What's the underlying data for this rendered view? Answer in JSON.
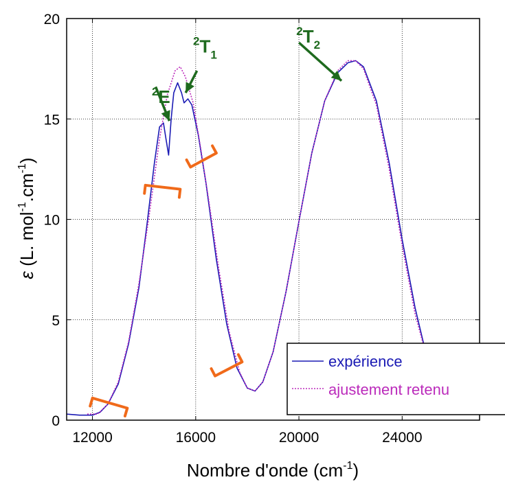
{
  "chart_data": {
    "type": "line",
    "title": "",
    "xlabel": {
      "main": "Nombre d'onde (cm",
      "sup": "-1",
      "close": ")"
    },
    "ylabel": {
      "eps": "ε",
      "open": " (L. mol",
      "sup1": "-1",
      "mid": ".cm",
      "sup2": "-1",
      "close": ")"
    },
    "xlim": [
      11000,
      27000
    ],
    "ylim": [
      0,
      20
    ],
    "xticks": [
      12000,
      16000,
      20000,
      24000
    ],
    "yticks": [
      0,
      5,
      10,
      15,
      20
    ],
    "grid": true,
    "legend_position": "bottom-right",
    "series": [
      {
        "name": "expérience",
        "color": "#1a1ab4",
        "style": "solid",
        "points": [
          [
            11000,
            0.3
          ],
          [
            11500,
            0.25
          ],
          [
            12000,
            0.25
          ],
          [
            12300,
            0.4
          ],
          [
            12600,
            0.8
          ],
          [
            13000,
            1.8
          ],
          [
            13400,
            3.8
          ],
          [
            13800,
            6.6
          ],
          [
            14100,
            9.6
          ],
          [
            14400,
            12.8
          ],
          [
            14600,
            14.6
          ],
          [
            14750,
            14.8
          ],
          [
            14850,
            14.0
          ],
          [
            14950,
            13.2
          ],
          [
            15050,
            15.0
          ],
          [
            15150,
            16.3
          ],
          [
            15300,
            16.8
          ],
          [
            15450,
            16.3
          ],
          [
            15550,
            15.8
          ],
          [
            15700,
            16.0
          ],
          [
            15850,
            15.7
          ],
          [
            16100,
            14.2
          ],
          [
            16400,
            11.8
          ],
          [
            16800,
            8.0
          ],
          [
            17200,
            4.8
          ],
          [
            17600,
            2.6
          ],
          [
            18000,
            1.6
          ],
          [
            18300,
            1.45
          ],
          [
            18600,
            1.9
          ],
          [
            19000,
            3.4
          ],
          [
            19500,
            6.4
          ],
          [
            20000,
            9.9
          ],
          [
            20500,
            13.3
          ],
          [
            21000,
            15.9
          ],
          [
            21500,
            17.3
          ],
          [
            21900,
            17.8
          ],
          [
            22200,
            17.9
          ],
          [
            22500,
            17.6
          ],
          [
            23000,
            15.9
          ],
          [
            23500,
            12.8
          ],
          [
            24000,
            9.0
          ],
          [
            24500,
            5.6
          ],
          [
            25000,
            2.9
          ]
        ]
      },
      {
        "name": "ajustement retenu",
        "color": "#bb2bbb",
        "style": "dotted",
        "points": [
          [
            11800,
            0.3
          ],
          [
            12200,
            0.3
          ],
          [
            12600,
            0.8
          ],
          [
            13000,
            1.9
          ],
          [
            13400,
            3.9
          ],
          [
            13800,
            6.8
          ],
          [
            14200,
            10.2
          ],
          [
            14600,
            14.0
          ],
          [
            14900,
            16.2
          ],
          [
            15200,
            17.4
          ],
          [
            15400,
            17.6
          ],
          [
            15600,
            17.1
          ],
          [
            15900,
            15.8
          ],
          [
            16200,
            13.5
          ],
          [
            16500,
            11.0
          ],
          [
            16900,
            7.5
          ],
          [
            17300,
            4.4
          ],
          [
            17700,
            2.4
          ],
          [
            18000,
            1.6
          ],
          [
            18300,
            1.45
          ],
          [
            18600,
            1.9
          ],
          [
            19000,
            3.4
          ],
          [
            19500,
            6.4
          ],
          [
            20000,
            9.9
          ],
          [
            20500,
            13.3
          ],
          [
            21000,
            15.9
          ],
          [
            21500,
            17.4
          ],
          [
            21900,
            17.9
          ],
          [
            22200,
            17.9
          ],
          [
            22500,
            17.5
          ],
          [
            23000,
            15.7
          ],
          [
            23500,
            12.5
          ],
          [
            24000,
            8.7
          ],
          [
            24500,
            5.3
          ],
          [
            25000,
            2.9
          ],
          [
            25500,
            1.4
          ],
          [
            26000,
            0.7
          ],
          [
            26500,
            0.4
          ],
          [
            27000,
            0.3
          ]
        ]
      }
    ],
    "annotations": [
      {
        "base": "E",
        "sup": "2",
        "sub": "",
        "text_at": [
          14300,
          15.8
        ],
        "arrow_from": [
          14450,
          16.6
        ],
        "arrow_to": [
          14980,
          14.9
        ]
      },
      {
        "base": "T",
        "sup": "2",
        "sub": "1",
        "text_at": [
          15900,
          18.3
        ],
        "arrow_from": [
          16050,
          17.4
        ],
        "arrow_to": [
          15610,
          16.3
        ]
      },
      {
        "base": "T",
        "sup": "2",
        "sub": "2",
        "text_at": [
          19900,
          18.8
        ],
        "arrow_from": [
          20000,
          18.8
        ],
        "arrow_to": [
          21650,
          16.9
        ]
      }
    ],
    "brackets": [
      {
        "x1": 12000,
        "y1": 1.1,
        "x2": 13350,
        "y2": 0.6,
        "side": "down"
      },
      {
        "x1": 14050,
        "y1": 11.7,
        "x2": 15400,
        "y2": 11.5,
        "side": "down"
      },
      {
        "x1": 15800,
        "y1": 12.6,
        "x2": 16800,
        "y2": 13.3,
        "side": "up"
      },
      {
        "x1": 16750,
        "y1": 2.2,
        "x2": 17800,
        "y2": 2.9,
        "side": "up"
      }
    ],
    "bracket_color": "#f06a1a",
    "annotation_color": "#1e6a1e"
  }
}
